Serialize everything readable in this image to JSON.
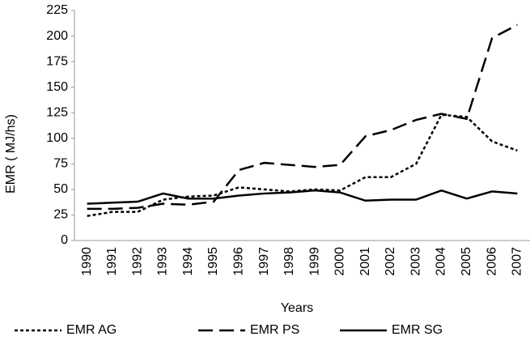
{
  "chart_data": {
    "type": "line",
    "categories": [
      "1990",
      "1991",
      "1992",
      "1993",
      "1994",
      "1995",
      "1996",
      "1997",
      "1998",
      "1999",
      "2000",
      "2001",
      "2002",
      "2003",
      "2004",
      "2005",
      "2006",
      "2007"
    ],
    "series": [
      {
        "name": "EMR AG",
        "color": "#000000",
        "dash": "4,3",
        "values": [
          24,
          28,
          28,
          40,
          43,
          44,
          52,
          50,
          48,
          50,
          49,
          62,
          62,
          75,
          123,
          121,
          97,
          88
        ]
      },
      {
        "name": "EMR PS",
        "color": "#000000",
        "dash": "18,8",
        "values": [
          31,
          31,
          32,
          36,
          35,
          38,
          69,
          76,
          74,
          72,
          74,
          102,
          108,
          118,
          124,
          119,
          198,
          211
        ]
      },
      {
        "name": "EMR SG",
        "color": "#000000",
        "dash": "none",
        "values": [
          36,
          37,
          38,
          46,
          41,
          41,
          44,
          46,
          47,
          49,
          47,
          39,
          40,
          40,
          49,
          41,
          48,
          46
        ]
      }
    ],
    "y_label": "EMR ( MJ/hs)",
    "x_label": "Years",
    "ylim": [
      0,
      225
    ],
    "yticks": [
      0,
      25,
      50,
      75,
      100,
      125,
      150,
      175,
      200,
      225
    ],
    "grid": false,
    "legend": "bottom"
  }
}
